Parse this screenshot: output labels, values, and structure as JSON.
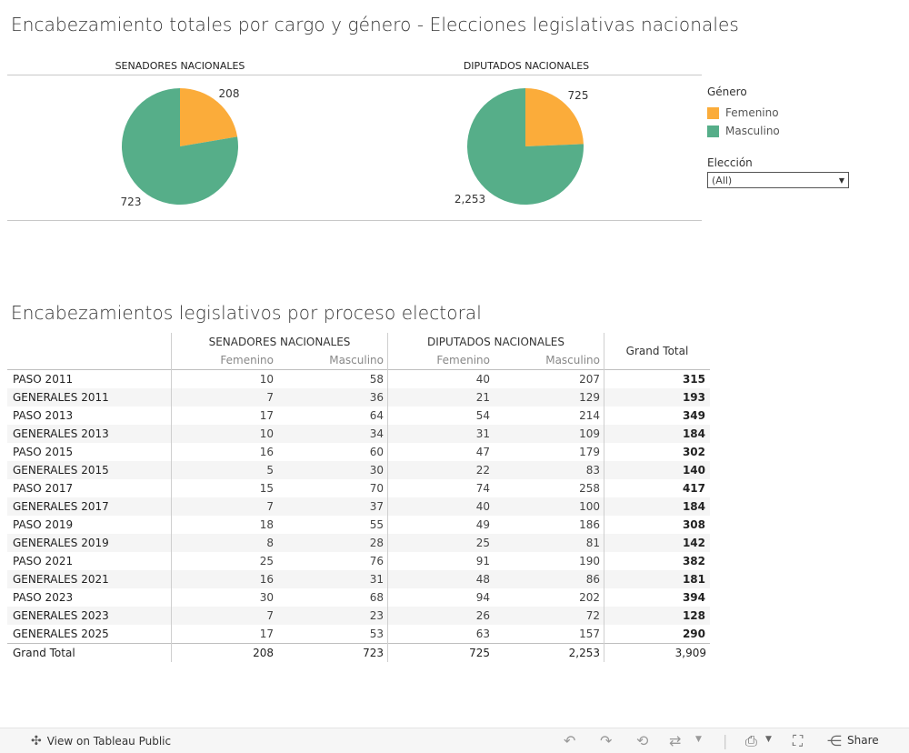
{
  "titles": {
    "main": "Encabezamiento totales por cargo y género - Elecciones legislativas nacionales",
    "table": "Encabezamientos legislativos por proceso electoral"
  },
  "legend": {
    "title": "Género",
    "items": [
      {
        "label": "Femenino",
        "color": "#FBAC3A"
      },
      {
        "label": "Masculino",
        "color": "#56AE89"
      }
    ]
  },
  "filter": {
    "label": "Elección",
    "value": "(All)"
  },
  "chart_data": [
    {
      "type": "pie",
      "title": "SENADORES NACIONALES",
      "categories": [
        "Femenino",
        "Masculino"
      ],
      "values": [
        208,
        723
      ],
      "labels": [
        "208",
        "723"
      ],
      "colors": [
        "#FBAC3A",
        "#56AE89"
      ]
    },
    {
      "type": "pie",
      "title": "DIPUTADOS NACIONALES",
      "categories": [
        "Femenino",
        "Masculino"
      ],
      "values": [
        725,
        2253
      ],
      "labels": [
        "725",
        "2,253"
      ],
      "colors": [
        "#FBAC3A",
        "#56AE89"
      ]
    },
    {
      "type": "table",
      "column_groups": [
        "SENADORES NACIONALES",
        "DIPUTADOS NACIONALES"
      ],
      "sub_columns": [
        "Femenino",
        "Masculino"
      ],
      "grand_total_label": "Grand Total",
      "rows": [
        {
          "label": "PASO 2011",
          "values": [
            "10",
            "58",
            "40",
            "207"
          ],
          "total": "315"
        },
        {
          "label": "GENERALES 2011",
          "values": [
            "7",
            "36",
            "21",
            "129"
          ],
          "total": "193"
        },
        {
          "label": "PASO 2013",
          "values": [
            "17",
            "64",
            "54",
            "214"
          ],
          "total": "349"
        },
        {
          "label": "GENERALES 2013",
          "values": [
            "10",
            "34",
            "31",
            "109"
          ],
          "total": "184"
        },
        {
          "label": "PASO 2015",
          "values": [
            "16",
            "60",
            "47",
            "179"
          ],
          "total": "302"
        },
        {
          "label": "GENERALES 2015",
          "values": [
            "5",
            "30",
            "22",
            "83"
          ],
          "total": "140"
        },
        {
          "label": "PASO 2017",
          "values": [
            "15",
            "70",
            "74",
            "258"
          ],
          "total": "417"
        },
        {
          "label": "GENERALES 2017",
          "values": [
            "7",
            "37",
            "40",
            "100"
          ],
          "total": "184"
        },
        {
          "label": "PASO 2019",
          "values": [
            "18",
            "55",
            "49",
            "186"
          ],
          "total": "308"
        },
        {
          "label": "GENERALES 2019",
          "values": [
            "8",
            "28",
            "25",
            "81"
          ],
          "total": "142"
        },
        {
          "label": "PASO 2021",
          "values": [
            "25",
            "76",
            "91",
            "190"
          ],
          "total": "382"
        },
        {
          "label": "GENERALES 2021",
          "values": [
            "16",
            "31",
            "48",
            "86"
          ],
          "total": "181"
        },
        {
          "label": "PASO 2023",
          "values": [
            "30",
            "68",
            "94",
            "202"
          ],
          "total": "394"
        },
        {
          "label": "GENERALES 2023",
          "values": [
            "7",
            "23",
            "26",
            "72"
          ],
          "total": "128"
        },
        {
          "label": "GENERALES 2025",
          "values": [
            "17",
            "53",
            "63",
            "157"
          ],
          "total": "290"
        }
      ],
      "total_row": {
        "label": "Grand Total",
        "values": [
          "208",
          "723",
          "725",
          "2,253"
        ],
        "total": "3,909"
      }
    }
  ],
  "footer": {
    "view_label": "View on Tableau Public",
    "share_label": "Share"
  }
}
